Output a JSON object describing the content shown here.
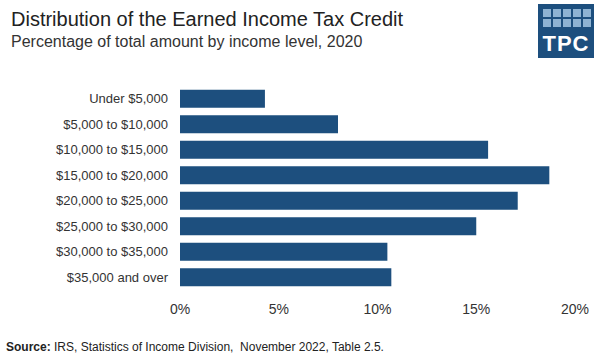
{
  "chart_data": {
    "type": "bar",
    "orientation": "horizontal",
    "title": "Distribution of the Earned Income Tax Credit",
    "subtitle": "Percentage of total amount by income level, 2020",
    "categories": [
      "Under $5,000",
      "$5,000 to $10,000",
      "$10,000 to $15,000",
      "$15,000 to $20,000",
      "$20,000 to $25,000",
      "$25,000 to $30,000",
      "$30,000 to $35,000",
      "$35,000 and over"
    ],
    "values": [
      4.3,
      8.0,
      15.6,
      18.7,
      17.1,
      15.0,
      10.5,
      10.7
    ],
    "color": "#1d4f7e",
    "xlim": [
      0,
      20
    ],
    "xticks": [
      {
        "value": 0,
        "label": "0%"
      },
      {
        "value": 5,
        "label": "5%"
      },
      {
        "value": 10,
        "label": "10%"
      },
      {
        "value": 15,
        "label": "15%"
      },
      {
        "value": 20,
        "label": "20%"
      }
    ],
    "grid": false,
    "source": {
      "label": "Source:",
      "text": "IRS, Statistics of Income Division,  November 2022, Table 2.5."
    },
    "logo": "TPC"
  }
}
